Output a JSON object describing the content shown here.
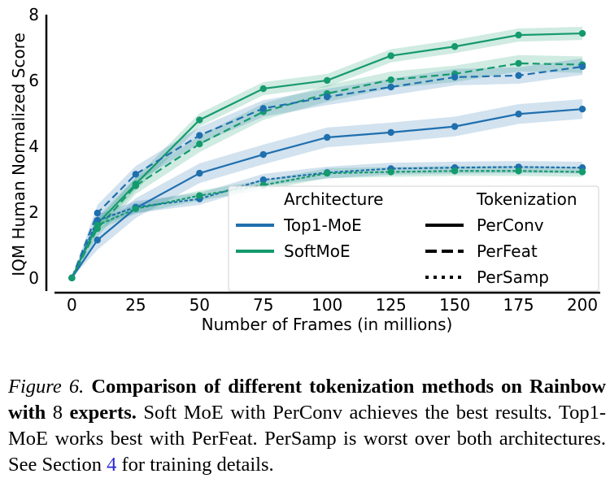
{
  "chart_data": {
    "type": "line",
    "xlabel": "Number of Frames (in millions)",
    "ylabel": "IQM Human Normalized Score",
    "xlim": [
      -10,
      207
    ],
    "ylim": [
      -0.4,
      8
    ],
    "x": [
      0,
      10,
      25,
      50,
      75,
      100,
      125,
      150,
      175,
      200
    ],
    "x_ticks": [
      0,
      25,
      50,
      75,
      100,
      125,
      150,
      175,
      200
    ],
    "y_ticks": [
      0,
      2,
      4,
      6,
      8
    ],
    "grid": false,
    "legend": {
      "placement": "lower-right",
      "col1_title": "Architecture",
      "col2_title": "Tokenization",
      "architectures": [
        {
          "name": "Top1-MoE",
          "color": "#1f6fae"
        },
        {
          "name": "SoftMoE",
          "color": "#159a6d"
        }
      ],
      "tokenizations": [
        {
          "name": "PerConv",
          "style": "solid"
        },
        {
          "name": "PerFeat",
          "style": "dashed"
        },
        {
          "name": "PerSamp",
          "style": "dotted"
        }
      ]
    },
    "series": [
      {
        "architecture": "SoftMoE",
        "tokenization": "PerConv",
        "color": "#159a6d",
        "style": "solid",
        "values": [
          0,
          1.65,
          2.85,
          4.8,
          5.75,
          6.0,
          6.75,
          7.03,
          7.38,
          7.43
        ],
        "band": 0.2
      },
      {
        "architecture": "SoftMoE",
        "tokenization": "PerFeat",
        "color": "#159a6d",
        "style": "dashed",
        "values": [
          0,
          1.5,
          2.8,
          4.07,
          5.05,
          5.6,
          6.02,
          6.2,
          6.52,
          6.48
        ],
        "band": 0.25
      },
      {
        "architecture": "Top1-MoE",
        "tokenization": "PerFeat",
        "color": "#1f6fae",
        "style": "dashed",
        "values": [
          0,
          1.97,
          3.15,
          4.33,
          5.15,
          5.5,
          5.8,
          6.1,
          6.15,
          6.42
        ],
        "band": 0.25
      },
      {
        "architecture": "Top1-MoE",
        "tokenization": "PerConv",
        "color": "#1f6fae",
        "style": "solid",
        "values": [
          0,
          1.15,
          2.12,
          3.18,
          3.75,
          4.27,
          4.42,
          4.6,
          4.98,
          5.13
        ],
        "band": 0.3
      },
      {
        "architecture": "Top1-MoE",
        "tokenization": "PerSamp",
        "color": "#1f6fae",
        "style": "dotted",
        "values": [
          0,
          1.75,
          2.15,
          2.4,
          2.98,
          3.2,
          3.32,
          3.35,
          3.37,
          3.35
        ],
        "band": 0.18
      },
      {
        "architecture": "SoftMoE",
        "tokenization": "PerSamp",
        "color": "#159a6d",
        "style": "dotted",
        "values": [
          0,
          1.6,
          2.1,
          2.5,
          2.82,
          3.18,
          3.22,
          3.25,
          3.25,
          3.22
        ],
        "band": 0.15
      }
    ]
  },
  "caption": {
    "figure_label": "Figure 6.",
    "bold_text": "Comparison of different tokenization methods on Rainbow with",
    "bold_num": "8",
    "bold_text2": "experts.",
    "body_text": "Soft MoE with PerConv achieves the best results. Top1-MoE works best with PerFeat. PerSamp is worst over both architectures. See Section",
    "section_ref": "4",
    "body_end": "for training details."
  }
}
